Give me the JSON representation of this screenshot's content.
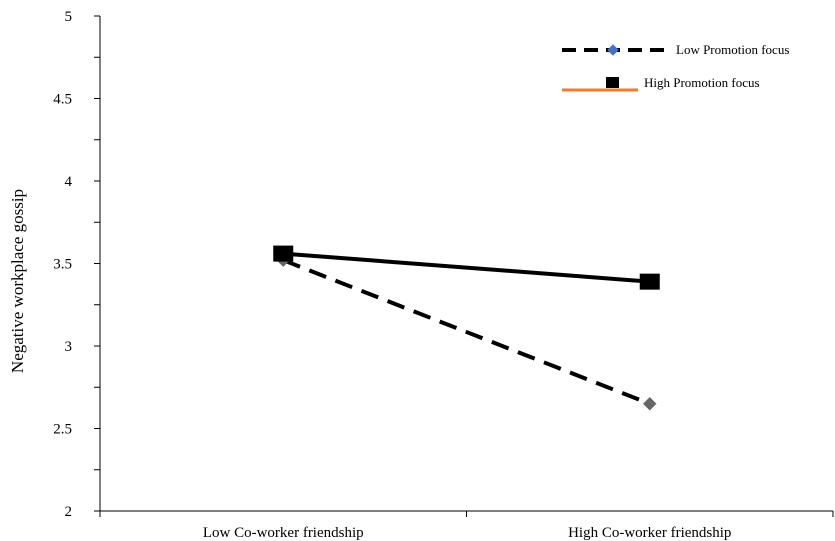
{
  "chart_data": {
    "type": "line",
    "title": "",
    "xlabel": "",
    "ylabel": "Negative workplace gossip",
    "categories": [
      "Low Co-worker friendship",
      "High Co-worker friendship"
    ],
    "ylim": [
      2,
      5
    ],
    "yticks": [
      2,
      2.5,
      3,
      3.5,
      4,
      4.5,
      5
    ],
    "ytick_labels": [
      "2",
      "2.5",
      "3",
      "3.5",
      "4",
      "4.5",
      "5"
    ],
    "grid": false,
    "legend_position": "top-right",
    "series": [
      {
        "name": "Low Promotion focus",
        "values": [
          3.52,
          2.65
        ],
        "line_style": "dashed",
        "line_color": "#000000",
        "marker": "diamond",
        "marker_color": "#666666",
        "legend_marker_color": "#4472c4"
      },
      {
        "name": "High Promotion focus",
        "values": [
          3.56,
          3.39
        ],
        "line_style": "solid",
        "line_color": "#000000",
        "marker": "square",
        "marker_color": "#000000",
        "legend_line_color": "#ed7d31"
      }
    ]
  }
}
